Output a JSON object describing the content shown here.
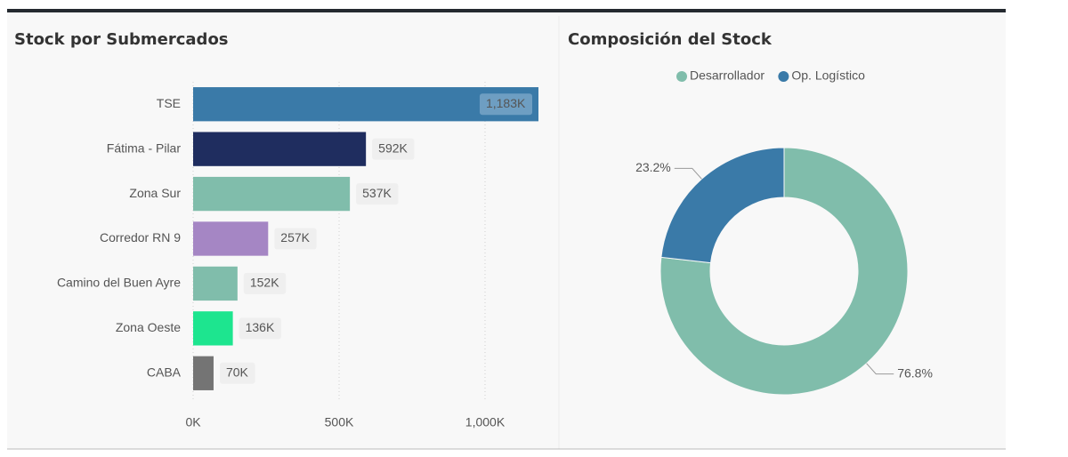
{
  "chart_data": [
    {
      "type": "bar",
      "orientation": "horizontal",
      "title": "Stock por Submercados",
      "categories": [
        "TSE",
        "Fátima - Pilar",
        "Zona Sur",
        "Corredor RN 9",
        "Camino del Buen Ayre",
        "Zona Oeste",
        "CABA"
      ],
      "values": [
        1183,
        592,
        537,
        257,
        152,
        136,
        70
      ],
      "value_labels": [
        "1,183K",
        "592K",
        "537K",
        "257K",
        "152K",
        "136K",
        "70K"
      ],
      "colors": [
        "#3a7aa8",
        "#1f2d5f",
        "#80bdab",
        "#a586c4",
        "#80bdab",
        "#1de58f",
        "#747474"
      ],
      "xlim": [
        0,
        1183
      ],
      "xticks": [
        {
          "value": 0,
          "label": "0K"
        },
        {
          "value": 500,
          "label": "500K"
        },
        {
          "value": 1000,
          "label": "1,000K"
        }
      ],
      "grid": true
    },
    {
      "type": "donut",
      "title": "Composición del Stock",
      "categories": [
        "Desarrollador",
        "Op. Logístico"
      ],
      "values": [
        76.8,
        23.2
      ],
      "value_labels": [
        "76.8%",
        "23.2%"
      ],
      "colors": [
        "#80bdab",
        "#3a7aa8"
      ],
      "legend": "top"
    }
  ]
}
